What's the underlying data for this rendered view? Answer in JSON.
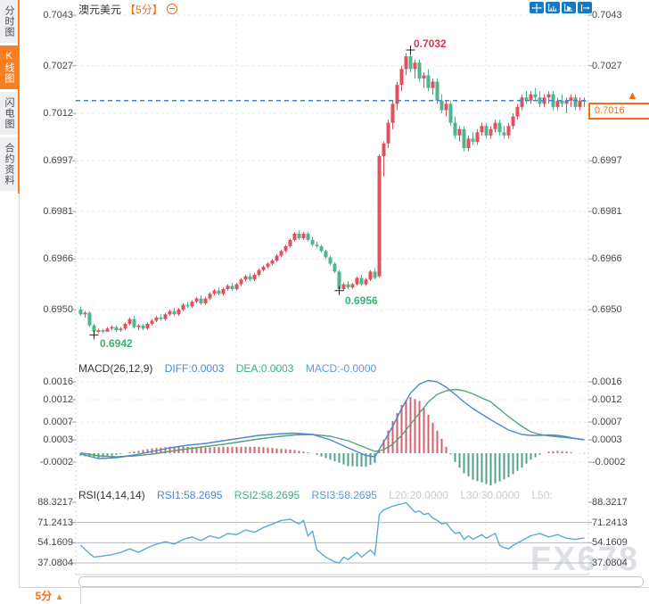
{
  "header": {
    "symbol": "澳元美元",
    "period_tag": "【5分】",
    "icons": {
      "collapse": "circle-minus-icon",
      "toolbar": [
        "move-crosshair-icon",
        "axis-scale-icon",
        "axis-playback-icon",
        "exit-chart-icon"
      ]
    }
  },
  "sidebar": {
    "items": [
      {
        "label": "分时图",
        "active": false
      },
      {
        "label": "K线图",
        "active": true
      },
      {
        "label": "闪电图",
        "active": false
      },
      {
        "label": "合约资料",
        "active": false
      }
    ]
  },
  "colors": {
    "accent_orange": "#f76e12",
    "candle_up_red": "#e0505e",
    "candle_down_green": "#4db68d",
    "diff_blue": "#4f86d4",
    "dea_green": "#55a377",
    "rsi_blue": "#58abd3",
    "last_price_line_blue": "#3d87d8",
    "toolbar_blue": "#1779c1"
  },
  "price_box": {
    "value": "0.7016"
  },
  "bottom_bar": {
    "period": "5分",
    "arrow": "▲"
  },
  "watermark": "FX678",
  "chart_data": [
    {
      "type": "candlestick",
      "title": "澳元美元 5分",
      "y_ticks": [
        "0.7043",
        "0.7027",
        "0.7012",
        "0.6997",
        "0.6981",
        "0.6966",
        "0.6950"
      ],
      "ylim": [
        0.69345,
        0.70475
      ],
      "last_price": 0.7016,
      "annotations": {
        "high": "0.7032",
        "low": "0.6942",
        "swing_low": "0.6956"
      },
      "high_index": 74,
      "low_index": 3,
      "swing_low_index": 58,
      "pip_base": 0.69,
      "pip_size": 0.0001,
      "candles_ohlc_pips": [
        [
          50,
          51,
          48,
          48.5
        ],
        [
          48.5,
          49.5,
          47.5,
          49
        ],
        [
          49,
          49.5,
          44.5,
          45
        ],
        [
          45,
          45.5,
          42,
          43
        ],
        [
          43,
          44,
          42.5,
          43.5
        ],
        [
          43.5,
          44,
          42.5,
          43
        ],
        [
          43,
          44.5,
          43,
          44
        ],
        [
          44,
          45,
          43.5,
          44.5
        ],
        [
          44.5,
          45,
          43,
          43.5
        ],
        [
          43.5,
          44.5,
          43,
          44
        ],
        [
          44,
          46,
          43.5,
          45.5
        ],
        [
          45.5,
          47.5,
          45,
          47
        ],
        [
          47,
          48,
          44,
          44.5
        ],
        [
          44.5,
          45.5,
          43.5,
          45
        ],
        [
          45,
          45.5,
          43.5,
          44
        ],
        [
          44,
          46,
          43.5,
          45.5
        ],
        [
          45.5,
          47,
          45,
          46.5
        ],
        [
          46.5,
          48,
          46,
          47.5
        ],
        [
          47.5,
          48.5,
          46.5,
          47
        ],
        [
          47,
          49,
          46.5,
          48.5
        ],
        [
          48.5,
          50,
          48,
          49.5
        ],
        [
          49.5,
          50.5,
          48,
          48.5
        ],
        [
          48.5,
          50.5,
          48,
          50
        ],
        [
          50,
          52,
          49.5,
          51.5
        ],
        [
          51.5,
          52.5,
          50.5,
          51
        ],
        [
          51,
          53,
          50.5,
          52.5
        ],
        [
          52.5,
          54,
          52,
          53.5
        ],
        [
          53.5,
          54.5,
          51.5,
          52
        ],
        [
          52,
          54,
          51.5,
          53.5
        ],
        [
          53.5,
          55.5,
          53,
          55
        ],
        [
          55,
          56.5,
          54.5,
          56
        ],
        [
          56,
          57,
          54.5,
          55
        ],
        [
          55,
          57,
          54.5,
          56.5
        ],
        [
          56.5,
          58,
          56,
          57.5
        ],
        [
          57.5,
          58.5,
          56,
          56.5
        ],
        [
          56.5,
          58.5,
          56,
          58
        ],
        [
          58,
          60,
          57.5,
          59.5
        ],
        [
          59.5,
          61,
          59,
          60.5
        ],
        [
          60.5,
          61.5,
          59,
          59.5
        ],
        [
          59.5,
          61.5,
          59,
          61
        ],
        [
          61,
          63,
          60.5,
          62.5
        ],
        [
          62.5,
          64,
          62,
          63.5
        ],
        [
          63.5,
          65,
          63,
          64.5
        ],
        [
          64.5,
          66,
          64,
          65.5
        ],
        [
          65.5,
          67.5,
          65,
          67
        ],
        [
          67,
          69,
          66.5,
          68.5
        ],
        [
          68.5,
          70.5,
          68,
          70
        ],
        [
          70,
          72.5,
          69.5,
          72
        ],
        [
          72,
          74.5,
          71.5,
          74
        ],
        [
          74,
          75,
          72,
          72.5
        ],
        [
          72.5,
          74.5,
          72,
          74
        ],
        [
          74,
          74.5,
          71.5,
          72
        ],
        [
          72,
          73,
          70,
          70.5
        ],
        [
          70.5,
          71.5,
          69.5,
          70
        ],
        [
          70,
          70.5,
          68,
          68.5
        ],
        [
          68.5,
          69,
          66,
          66.5
        ],
        [
          66.5,
          67,
          64,
          64.5
        ],
        [
          64.5,
          65,
          61.5,
          62
        ],
        [
          62,
          62.5,
          56,
          56.5
        ],
        [
          56.5,
          58.5,
          56,
          58
        ],
        [
          58,
          59,
          56.5,
          57
        ],
        [
          57,
          58.5,
          56.5,
          58
        ],
        [
          58,
          60.5,
          57.5,
          60
        ],
        [
          60,
          61,
          57.5,
          58
        ],
        [
          58,
          60,
          57.5,
          59.5
        ],
        [
          59.5,
          62.5,
          59,
          62
        ],
        [
          62,
          63,
          59.5,
          60
        ],
        [
          60.5,
          99,
          60,
          98.5
        ],
        [
          98.5,
          103,
          92,
          102.5
        ],
        [
          102.5,
          110,
          101,
          109
        ],
        [
          109,
          116,
          107,
          115
        ],
        [
          115,
          122,
          113,
          121
        ],
        [
          121,
          127,
          119,
          126
        ],
        [
          126,
          131,
          124,
          130
        ],
        [
          130,
          132,
          125,
          126
        ],
        [
          126,
          129,
          123,
          128
        ],
        [
          128,
          129,
          122,
          123
        ],
        [
          123,
          125,
          120,
          124
        ],
        [
          124,
          126,
          119,
          120
        ],
        [
          120,
          123,
          118,
          122
        ],
        [
          122,
          123,
          115,
          116
        ],
        [
          116,
          118,
          112,
          113
        ],
        [
          113,
          116,
          111,
          115
        ],
        [
          115,
          116,
          108,
          109
        ],
        [
          109,
          111,
          104,
          105
        ],
        [
          105,
          108,
          103,
          107
        ],
        [
          107,
          108,
          100,
          101
        ],
        [
          101,
          105,
          100,
          104
        ],
        [
          104,
          106,
          102,
          103
        ],
        [
          103,
          107,
          102,
          106
        ],
        [
          106,
          109,
          105,
          108
        ],
        [
          108,
          109,
          104,
          105
        ],
        [
          105,
          108,
          104,
          107
        ],
        [
          107,
          110,
          106,
          109
        ],
        [
          109,
          110,
          105,
          106
        ],
        [
          106,
          108,
          104,
          105
        ],
        [
          105,
          109,
          104,
          108
        ],
        [
          108,
          112,
          107,
          111
        ],
        [
          111,
          115,
          110,
          114
        ],
        [
          114,
          118,
          113,
          117
        ],
        [
          117,
          119,
          115,
          116
        ],
        [
          116,
          119,
          115,
          118
        ],
        [
          118,
          120,
          116,
          117
        ],
        [
          117,
          119,
          114,
          115
        ],
        [
          115,
          118,
          114,
          117
        ],
        [
          117,
          119,
          115,
          118
        ],
        [
          118,
          119,
          113,
          114
        ],
        [
          114,
          117,
          113,
          116
        ],
        [
          116,
          118,
          114,
          115
        ],
        [
          115,
          117,
          112,
          116
        ],
        [
          116,
          118,
          114,
          117
        ],
        [
          117,
          118,
          113,
          114
        ],
        [
          114,
          117,
          113,
          116
        ],
        [
          116,
          117,
          114,
          116
        ]
      ]
    },
    {
      "type": "macd",
      "label": "MACD(26,12,9)",
      "diff_label": "DIFF:0.0003",
      "dea_label": "DEA:0.0003",
      "macd_label": "MACD:-0.0000",
      "y_ticks": [
        "0.0016",
        "0.0012",
        "0.0007",
        "0.0003",
        "-0.0002"
      ],
      "hist_scale": 1.8,
      "samples_i_diff_dea": [
        [
          0,
          -2e-05,
          1e-05
        ],
        [
          4,
          -0.00012,
          -6e-05
        ],
        [
          8,
          -0.0001,
          -8e-05
        ],
        [
          12,
          -4e-05,
          -6e-05
        ],
        [
          16,
          4e-05,
          -2e-05
        ],
        [
          20,
          0.00012,
          4e-05
        ],
        [
          24,
          0.00018,
          0.0001
        ],
        [
          28,
          0.00022,
          0.00015
        ],
        [
          32,
          0.00028,
          0.0002
        ],
        [
          36,
          0.00034,
          0.00026
        ],
        [
          40,
          0.0004,
          0.00032
        ],
        [
          44,
          0.00043,
          0.00037
        ],
        [
          48,
          0.00045,
          0.00041
        ],
        [
          52,
          0.00042,
          0.00042
        ],
        [
          56,
          0.0003,
          0.00038
        ],
        [
          60,
          0.00012,
          0.00028
        ],
        [
          64,
          -5e-05,
          0.00012
        ],
        [
          66,
          -8e-05,
          4e-05
        ],
        [
          68,
          0.00025,
          8e-05
        ],
        [
          70,
          0.0006,
          0.0002
        ],
        [
          72,
          0.001,
          0.0004
        ],
        [
          74,
          0.00135,
          0.00065
        ],
        [
          76,
          0.00155,
          0.0009
        ],
        [
          78,
          0.00163,
          0.00115
        ],
        [
          80,
          0.0016,
          0.00132
        ],
        [
          82,
          0.00148,
          0.0014
        ],
        [
          84,
          0.00132,
          0.00143
        ],
        [
          86,
          0.00115,
          0.0014
        ],
        [
          88,
          0.001,
          0.00133
        ],
        [
          92,
          0.00075,
          0.00115
        ],
        [
          96,
          0.00052,
          0.00082
        ],
        [
          99,
          0.00042,
          0.0006
        ],
        [
          101,
          0.0004,
          0.00048
        ],
        [
          103,
          0.0004,
          0.00042
        ],
        [
          105,
          0.00041,
          0.00039
        ],
        [
          107,
          0.0004,
          0.00037
        ],
        [
          109,
          0.00037,
          0.00035
        ],
        [
          111,
          0.00033,
          0.00033
        ],
        [
          113,
          0.0003,
          0.000305
        ]
      ]
    },
    {
      "type": "rsi",
      "label": "RSI(14,14,14)",
      "rsi1_label": "RSI1:58.2695",
      "rsi2_label": "RSI2:58.2695",
      "rsi3_label": "RSI3:58.2695",
      "l20_label": "L20:20.0000",
      "l30_label": "L30:30.0000",
      "l50_label": "L50:",
      "y_ticks": [
        "88.3217",
        "71.2413",
        "54.1609",
        "37.0804"
      ],
      "samples_i_value": [
        [
          0,
          52
        ],
        [
          2,
          45
        ],
        [
          3,
          42
        ],
        [
          5,
          43
        ],
        [
          7,
          44
        ],
        [
          9,
          46
        ],
        [
          11,
          49
        ],
        [
          13,
          46
        ],
        [
          15,
          50
        ],
        [
          17,
          53
        ],
        [
          19,
          55
        ],
        [
          21,
          53
        ],
        [
          23,
          57
        ],
        [
          25,
          59
        ],
        [
          27,
          56
        ],
        [
          29,
          60
        ],
        [
          31,
          58
        ],
        [
          33,
          62
        ],
        [
          35,
          61
        ],
        [
          37,
          65
        ],
        [
          39,
          63
        ],
        [
          41,
          67
        ],
        [
          43,
          70
        ],
        [
          45,
          73
        ],
        [
          47,
          74
        ],
        [
          49,
          70
        ],
        [
          50,
          73
        ],
        [
          51,
          60
        ],
        [
          52,
          64
        ],
        [
          53,
          48
        ],
        [
          55,
          42
        ],
        [
          56,
          40
        ],
        [
          57,
          38
        ],
        [
          58,
          37
        ],
        [
          59,
          42
        ],
        [
          60,
          40
        ],
        [
          61,
          43
        ],
        [
          62,
          46
        ],
        [
          63,
          42
        ],
        [
          64,
          45
        ],
        [
          65,
          48
        ],
        [
          66,
          44
        ],
        [
          67,
          78
        ],
        [
          68,
          82
        ],
        [
          70,
          85
        ],
        [
          72,
          87
        ],
        [
          73,
          88
        ],
        [
          74,
          84
        ],
        [
          75,
          80
        ],
        [
          76,
          81
        ],
        [
          77,
          78
        ],
        [
          78,
          79
        ],
        [
          79,
          75
        ],
        [
          80,
          73
        ],
        [
          81,
          70
        ],
        [
          82,
          71
        ],
        [
          83,
          66
        ],
        [
          84,
          62
        ],
        [
          85,
          63
        ],
        [
          86,
          57
        ],
        [
          87,
          60
        ],
        [
          88,
          57
        ],
        [
          89,
          59
        ],
        [
          90,
          61
        ],
        [
          91,
          58
        ],
        [
          92,
          60
        ],
        [
          93,
          62
        ],
        [
          94,
          52
        ],
        [
          95,
          50
        ],
        [
          96,
          49
        ],
        [
          97,
          52
        ],
        [
          99,
          56
        ],
        [
          101,
          60
        ],
        [
          103,
          62
        ],
        [
          105,
          59
        ],
        [
          107,
          61
        ],
        [
          109,
          58
        ],
        [
          111,
          57
        ],
        [
          113,
          58.27
        ]
      ]
    }
  ]
}
